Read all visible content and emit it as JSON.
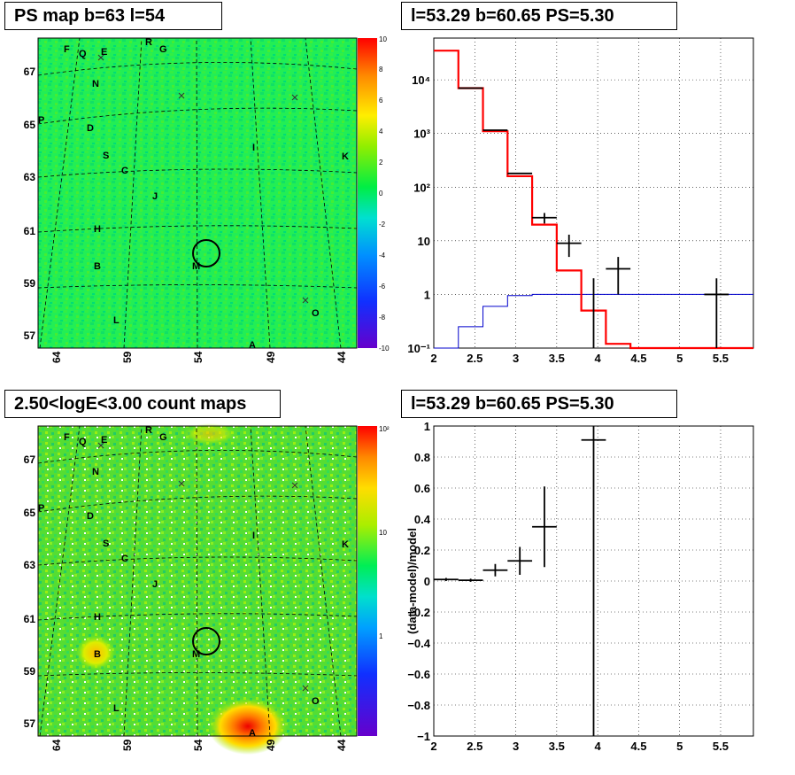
{
  "titles": {
    "map1": "PS map b=63 l=54",
    "spec1": "l=53.29 b=60.65 PS=5.30",
    "map2": "2.50<logE<3.00 count maps",
    "spec2": "l=53.29 b=60.65 PS=5.30"
  },
  "maps": {
    "x_ticks": [
      "64",
      "59",
      "54",
      "49",
      "44"
    ],
    "y_ticks": [
      "67",
      "65",
      "63",
      "61",
      "59",
      "57"
    ],
    "source_labels": [
      "F",
      "Q",
      "E",
      "R",
      "G",
      "N",
      "P",
      "D",
      "S",
      "C",
      "I",
      "K",
      "J",
      "H",
      "B",
      "M",
      "L",
      "O",
      "A"
    ],
    "map1_colorbar_ticks": [
      "10",
      "8",
      "6",
      "4",
      "2",
      "0",
      "-2",
      "-4",
      "-6",
      "-8",
      "-10"
    ],
    "map2_colorbar_ticks": [
      "10²",
      "10",
      "1"
    ],
    "colors": {
      "map1_background": "#22ee55",
      "map2_background": "#55dd33",
      "circle": "#000000"
    }
  },
  "chart_data": [
    {
      "type": "line",
      "panel": "spectrum",
      "title": "l=53.29 b=60.65 PS=5.30",
      "xlabel": "",
      "ylabel": "",
      "xlim": [
        2,
        5.9
      ],
      "ylim": [
        0.1,
        60000
      ],
      "yscale": "log",
      "x_ticks": [
        "2",
        "2.5",
        "3",
        "3.5",
        "4",
        "4.5",
        "5",
        "5.5"
      ],
      "y_ticks": [
        "10⁴",
        "10³",
        "10²",
        "10",
        "1",
        "10⁻¹"
      ],
      "grid": true,
      "data_points": [
        {
          "x": 2.45,
          "y": 7000,
          "xerr": 0.15,
          "yerr": 0
        },
        {
          "x": 2.75,
          "y": 1150,
          "xerr": 0.15,
          "yerr": 0
        },
        {
          "x": 3.05,
          "y": 180,
          "xerr": 0.15,
          "yerr": 0
        },
        {
          "x": 3.35,
          "y": 27,
          "xerr": 0.15,
          "yerr": 6
        },
        {
          "x": 3.65,
          "y": 9,
          "xerr": 0.15,
          "yerr": 4
        },
        {
          "x": 3.95,
          "y": 1,
          "xerr": 0.0,
          "yerr": 1
        },
        {
          "x": 4.25,
          "y": 3,
          "xerr": 0.15,
          "yerr": 2
        },
        {
          "x": 5.45,
          "y": 1,
          "xerr": 0.15,
          "yerr": 1
        }
      ],
      "model_red": {
        "edges": [
          2.0,
          2.3,
          2.6,
          2.9,
          3.2,
          3.5,
          3.8,
          4.1,
          4.4,
          5.9
        ],
        "values": [
          35000,
          7000,
          1100,
          160,
          20,
          2.8,
          0.5,
          0.12,
          0.1
        ]
      },
      "model_blue": {
        "edges": [
          2.0,
          2.3,
          2.6,
          2.9,
          3.2,
          5.9
        ],
        "values": [
          0.1,
          0.25,
          0.6,
          0.95,
          1.0
        ]
      },
      "colors": {
        "data": "#000000",
        "model": "#ff0000",
        "background_model": "#0000cc"
      }
    },
    {
      "type": "scatter",
      "panel": "residuals",
      "title": "l=53.29 b=60.65 PS=5.30",
      "xlabel": "",
      "ylabel": "(data-model)/model",
      "xlim": [
        2,
        5.9
      ],
      "ylim": [
        -1,
        1
      ],
      "x_ticks": [
        "2",
        "2.5",
        "3",
        "3.5",
        "4",
        "4.5",
        "5",
        "5.5"
      ],
      "y_ticks": [
        "1",
        "0.8",
        "0.6",
        "0.4",
        "0.2",
        "0",
        "−0.2",
        "−0.4",
        "−0.6",
        "−0.8",
        "−1"
      ],
      "grid": true,
      "data_points": [
        {
          "x": 2.15,
          "y": 0.01,
          "xerr": 0.15,
          "yerr": 0.01
        },
        {
          "x": 2.45,
          "y": 0.005,
          "xerr": 0.15,
          "yerr": 0.01
        },
        {
          "x": 2.75,
          "y": 0.07,
          "xerr": 0.15,
          "yerr": 0.04
        },
        {
          "x": 3.05,
          "y": 0.13,
          "xerr": 0.15,
          "yerr": 0.09
        },
        {
          "x": 3.35,
          "y": 0.35,
          "xerr": 0.15,
          "yerr": 0.26
        },
        {
          "x": 3.95,
          "y": 0.91,
          "xerr": 0.15,
          "yerr": 2.0
        }
      ],
      "colors": {
        "data": "#000000"
      }
    }
  ]
}
